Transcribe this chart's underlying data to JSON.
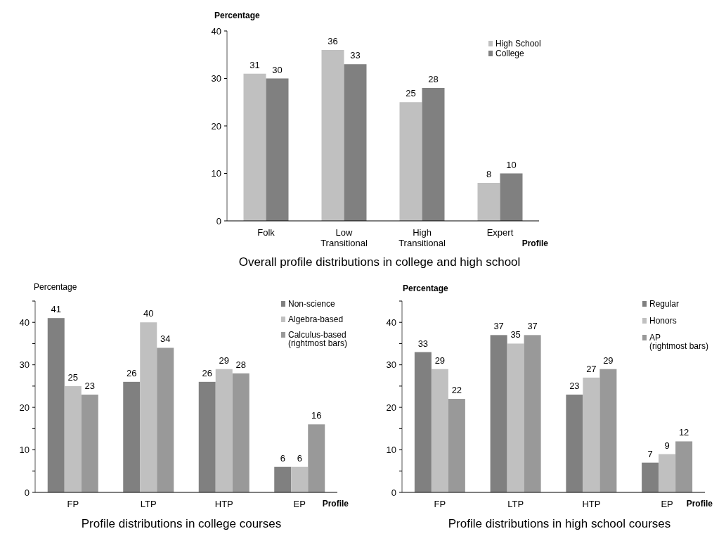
{
  "chart_data": [
    {
      "type": "bar",
      "title": "Overall profile distributions in college and high school",
      "ylabel": "Percentage",
      "xlabel": "Profile",
      "categories": [
        "Folk",
        "Low\nTransitional",
        "High\nTransitional",
        "Expert"
      ],
      "series": [
        {
          "name": "High School",
          "color": "#c0c0c0",
          "values": [
            31,
            36,
            25,
            8
          ]
        },
        {
          "name": "College",
          "color": "#808080",
          "values": [
            30,
            33,
            28,
            10
          ]
        }
      ],
      "ylim": [
        0,
        40
      ],
      "yticks": [
        0,
        10,
        20,
        30,
        40
      ],
      "legend": "top right",
      "data_labels": true,
      "grid": false
    },
    {
      "type": "bar",
      "title": "Profile distributions in college courses",
      "ylabel": "Percentage",
      "xlabel": "Profile",
      "categories": [
        "FP",
        "LTP",
        "HTP",
        "EP"
      ],
      "series": [
        {
          "name": "Non-science",
          "color": "#808080",
          "values": [
            41,
            26,
            26,
            6
          ]
        },
        {
          "name": "Algebra-based",
          "color": "#c0c0c0",
          "values": [
            25,
            40,
            29,
            6
          ]
        },
        {
          "name": "Calculus-based\n(rightmost bars)",
          "color": "#999999",
          "values": [
            23,
            34,
            28,
            16
          ]
        }
      ],
      "ylim": [
        0,
        45
      ],
      "yticks": [
        0,
        {
          "value": 5,
          "label": null
        },
        10,
        {
          "value": 15,
          "label": null
        },
        20,
        {
          "value": 25,
          "label": null
        },
        30,
        {
          "value": 35,
          "label": null
        },
        40,
        {
          "value": 45,
          "label": null
        }
      ],
      "legend": "top right",
      "data_labels": true,
      "grid": false
    },
    {
      "type": "bar",
      "title": "Profile distributions in high school courses",
      "ylabel": "Percentage",
      "xlabel": "Profile",
      "categories": [
        "FP",
        "LTP",
        "HTP",
        "EP"
      ],
      "series": [
        {
          "name": "Regular",
          "color": "#808080",
          "values": [
            33,
            37,
            23,
            7
          ]
        },
        {
          "name": "Honors",
          "color": "#c0c0c0",
          "values": [
            29,
            35,
            27,
            9
          ]
        },
        {
          "name": "AP\n(rightmost bars)",
          "color": "#999999",
          "values": [
            22,
            37,
            29,
            12
          ]
        }
      ],
      "ylim": [
        0,
        45
      ],
      "yticks": [
        0,
        {
          "value": 5,
          "label": null
        },
        10,
        {
          "value": 15,
          "label": null
        },
        20,
        {
          "value": 25,
          "label": null
        },
        30,
        {
          "value": 35,
          "label": null
        },
        40,
        {
          "value": 45,
          "label": null
        }
      ],
      "legend": "top right",
      "data_labels": true,
      "grid": false
    }
  ]
}
